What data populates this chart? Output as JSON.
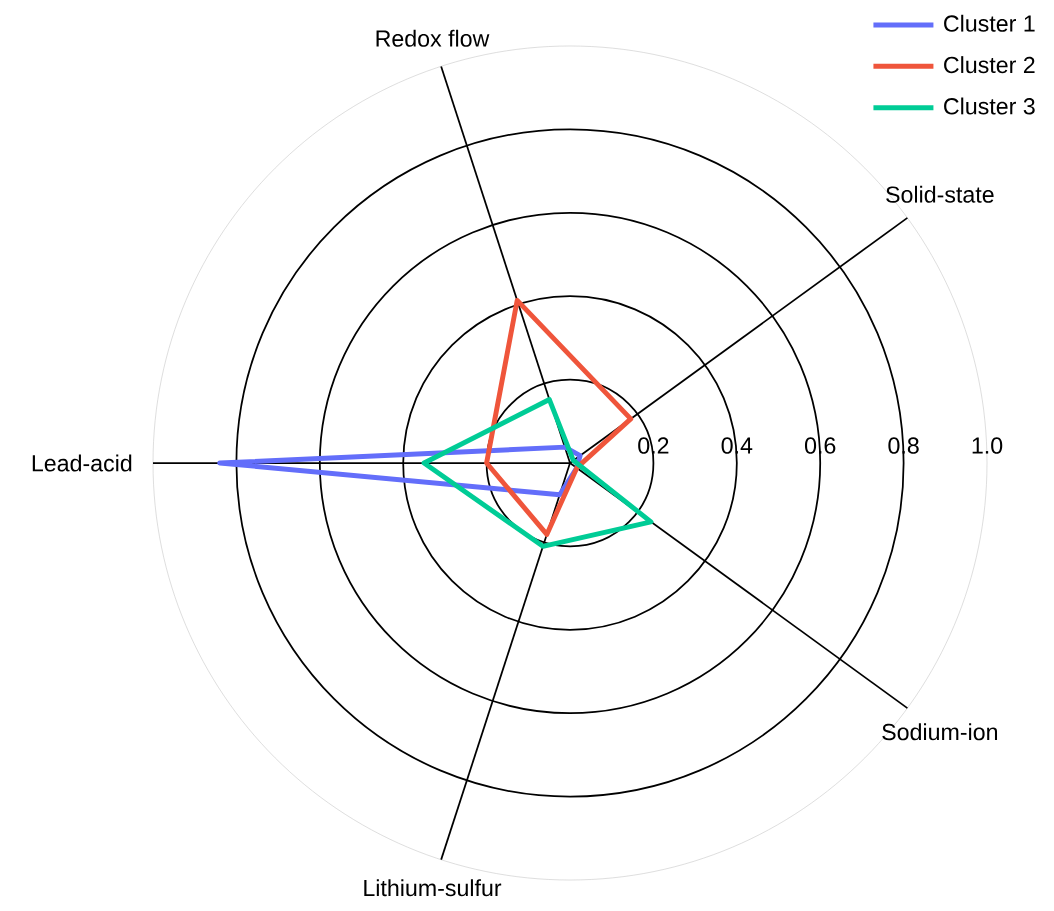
{
  "chart_data": {
    "type": "radar",
    "categories": [
      "Redox flow",
      "Solid-state",
      "Sodium-ion",
      "Lithium-sulfur",
      "Lead-acid"
    ],
    "series": [
      {
        "name": "Cluster 1",
        "color": "#636efa",
        "values": [
          0.04,
          0.03,
          0.02,
          0.08,
          0.84
        ]
      },
      {
        "name": "Cluster 2",
        "color": "#ef553b",
        "values": [
          0.41,
          0.18,
          0.02,
          0.18,
          0.2
        ]
      },
      {
        "name": "Cluster 3",
        "color": "#00cc96",
        "values": [
          0.16,
          0.01,
          0.24,
          0.21,
          0.35
        ]
      }
    ],
    "ylim": [
      0,
      1.0
    ],
    "yticks": [
      0.2,
      0.4,
      0.6,
      0.8,
      {
        "value": 1,
        "label": "1.0"
      }
    ],
    "legend": "top right",
    "grid": true,
    "marker": "none",
    "line_style": "solid"
  }
}
